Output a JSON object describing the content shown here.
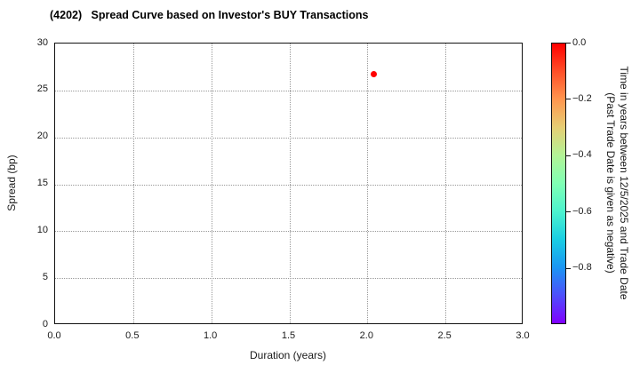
{
  "chart_data": {
    "type": "scatter",
    "title": "(4202)   Spread Curve based on Investor's BUY Transactions",
    "xlabel": "Duration (years)",
    "ylabel": "Spread (bp)",
    "xlim": [
      0.0,
      3.0
    ],
    "ylim": [
      0,
      30
    ],
    "grid": "dotted",
    "x_ticks": {
      "values": [
        0,
        0.5,
        1.0,
        1.5,
        2.0,
        2.5,
        3.0
      ],
      "labels": [
        "0.0",
        "0.5",
        "1.0",
        "1.5",
        "2.0",
        "2.5",
        "3.0"
      ]
    },
    "y_ticks": {
      "values": [
        0,
        5,
        10,
        15,
        20,
        25,
        30
      ],
      "labels": [
        "0",
        "5",
        "10",
        "15",
        "20",
        "25",
        "30"
      ]
    },
    "series": [
      {
        "name": "investor-buy-transactions",
        "points": [
          {
            "x": 2.04,
            "y": 26.7,
            "color_value": 0.0,
            "color": "#ff0000"
          }
        ]
      }
    ],
    "colorbar": {
      "label_line1": "Time in years between 12/5/2025 and Trade Date",
      "label_line2": "(Past Trade Date is given as negative)",
      "ticks": {
        "values": [
          0.0,
          -0.2,
          -0.4,
          -0.6,
          -0.8
        ],
        "labels": [
          "0.0",
          "−0.2",
          "−0.4",
          "−0.6",
          "−0.8"
        ]
      },
      "range_top": 0.0,
      "range_bottom": -1.0,
      "colormap": "rainbow",
      "top_color": "#ff0000",
      "bottom_color": "#8000ff"
    }
  }
}
